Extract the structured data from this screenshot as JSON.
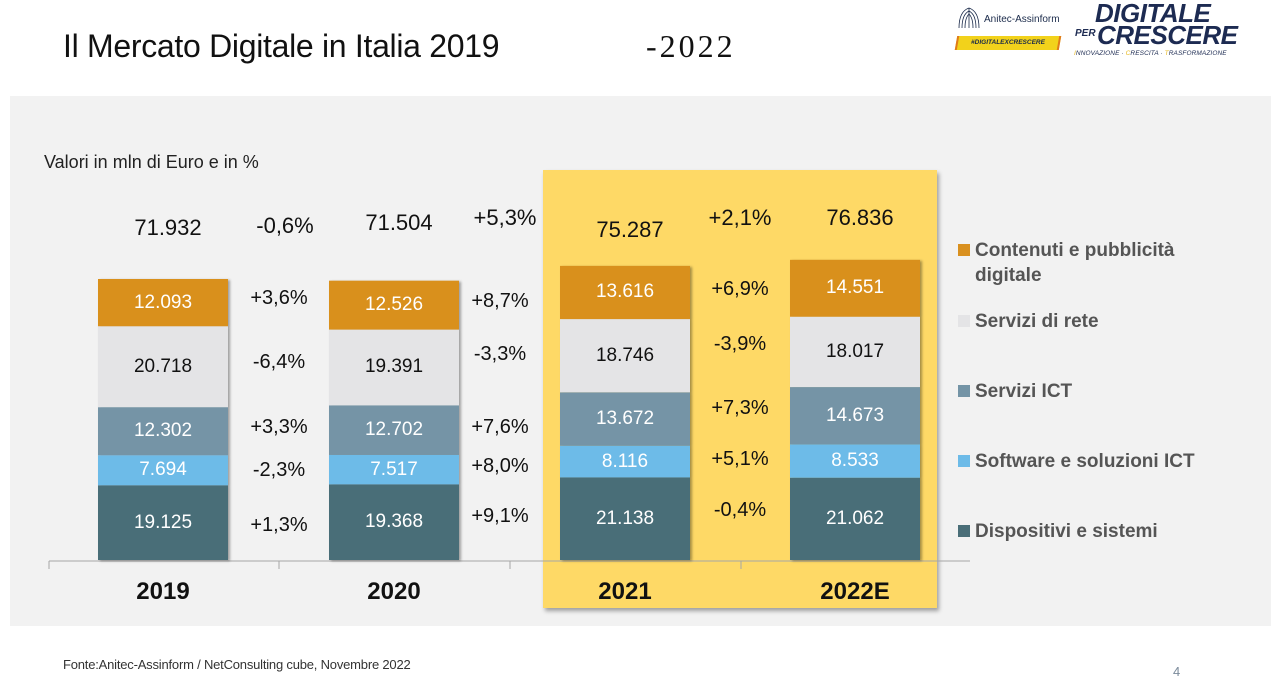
{
  "header": {
    "title": "Il Mercato Digitale in Italia 2019",
    "title_year": "-2022"
  },
  "logos": {
    "anitec_name": "Anitec-Assinform",
    "anitec_hashtag": "#DIGITALEXCRESCERE",
    "dpc_line1": "DIGITALE",
    "dpc_per": "PER",
    "dpc_line2": "CRESCERE",
    "dpc_tagline": [
      "INNOVAZIONE",
      "CRESCITA",
      "TRASFORMAZIONE"
    ],
    "dpc_tagline_sep": " · "
  },
  "subtitle": "Valori in mln di Euro e in %",
  "footer": {
    "source": "Fonte:Anitec-Assinform / NetConsulting cube, Novembre  2022",
    "page_number": "4"
  },
  "colors": {
    "contenuti": "#d9901f",
    "servizi_rete": "#e4e4e6",
    "servizi_ict": "#7494a6",
    "software": "#6dbbe8",
    "dispositivi": "#4a6e78",
    "highlight": "#fed966",
    "legend_text": "#555555"
  },
  "chart_data": {
    "type": "bar",
    "stacked": true,
    "title": "Il Mercato Digitale in Italia 2019-2022",
    "subtitle": "Valori in mln di Euro e in %",
    "xlabel": "",
    "ylabel": "",
    "unit": "mln di Euro",
    "categories": [
      "2019",
      "2020",
      "2021",
      "2022E"
    ],
    "highlighted_categories": [
      "2021",
      "2022E"
    ],
    "totals": [
      71932,
      71504,
      75287,
      76836
    ],
    "totals_labels": [
      "71.932",
      "71.504",
      "75.287",
      "76.836"
    ],
    "total_growth": [
      "-0,6%",
      "+5,3%",
      "+2,1%"
    ],
    "series": [
      {
        "key": "dispositivi",
        "name": "Dispositivi e sistemi",
        "values": [
          19125,
          19368,
          21138,
          21062
        ],
        "labels": [
          "19.125",
          "19.368",
          "21.138",
          "21.062"
        ],
        "growth": [
          "+1,3%",
          "+9,1%",
          "-0,4%"
        ],
        "label_color": "#ffffff"
      },
      {
        "key": "software",
        "name": "Software e soluzioni ICT",
        "values": [
          7694,
          7517,
          8116,
          8533
        ],
        "labels": [
          "7.694",
          "7.517",
          "8.116",
          "8.533"
        ],
        "growth": [
          "-2,3%",
          "+8,0%",
          "+5,1%"
        ],
        "label_color": "#ffffff"
      },
      {
        "key": "servizi_ict",
        "name": "Servizi ICT",
        "values": [
          12302,
          12702,
          13672,
          14673
        ],
        "labels": [
          "12.302",
          "12.702",
          "13.672",
          "14.673"
        ],
        "growth": [
          "+3,3%",
          "+7,6%",
          "+7,3%"
        ],
        "label_color": "#ffffff"
      },
      {
        "key": "servizi_rete",
        "name": "Servizi di rete",
        "values": [
          20718,
          19391,
          18746,
          18017
        ],
        "labels": [
          "20.718",
          "19.391",
          "18.746",
          "18.017"
        ],
        "growth": [
          "-6,4%",
          "-3,3%",
          "-3,9%"
        ],
        "label_color": "#111111"
      },
      {
        "key": "contenuti",
        "name": "Contenuti e pubblicità digitale",
        "values": [
          12093,
          12526,
          13616,
          14551
        ],
        "labels": [
          "12.093",
          "12.526",
          "13.616",
          "14.551"
        ],
        "growth": [
          "+3,6%",
          "+8,7%",
          "+6,9%"
        ],
        "label_color": "#ffffff"
      }
    ],
    "legend": {
      "placement": "right",
      "order": [
        "contenuti",
        "servizi_rete",
        "servizi_ict",
        "software",
        "dispositivi"
      ]
    },
    "grid": false
  }
}
